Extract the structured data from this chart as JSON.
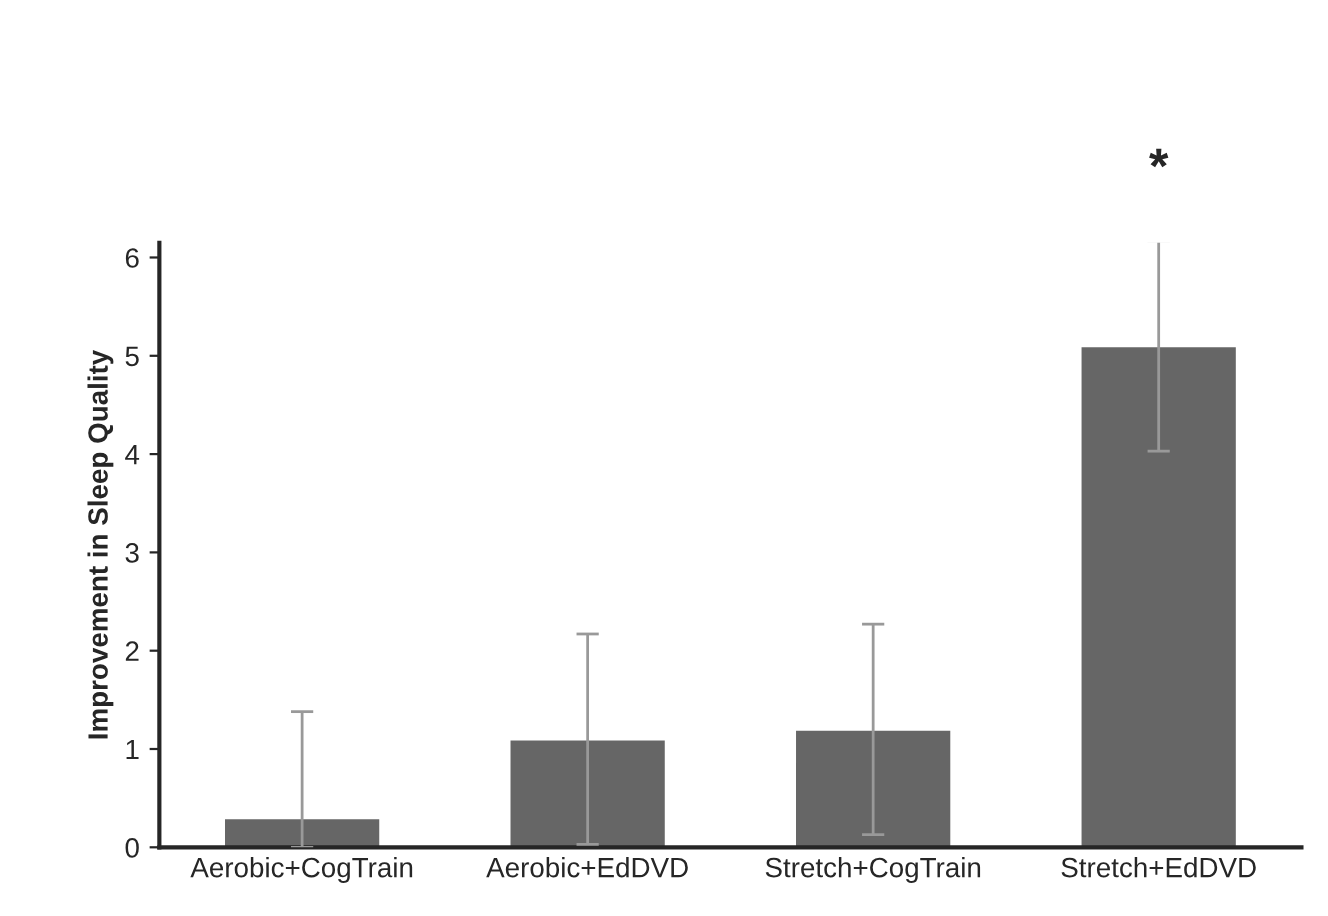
{
  "chart_data": {
    "type": "bar",
    "ylabel": "Improvement in Sleep Quality",
    "categories": [
      "Aerobic+CogTrain",
      "Aerobic+EdDVD",
      "Stretch+CogTrain",
      "Stretch+EdDVD"
    ],
    "values": [
      0.3,
      1.1,
      1.2,
      5.1
    ],
    "errors": [
      [
        0,
        1.38
      ],
      1.07,
      1.07,
      1.07
    ],
    "color": "#666666",
    "annotations": [
      "*"
    ],
    "ylim": [
      0,
      6.15
    ],
    "yticks": [
      0,
      1,
      2,
      3,
      4,
      5,
      6
    ],
    "grid": false,
    "legend": false
  }
}
